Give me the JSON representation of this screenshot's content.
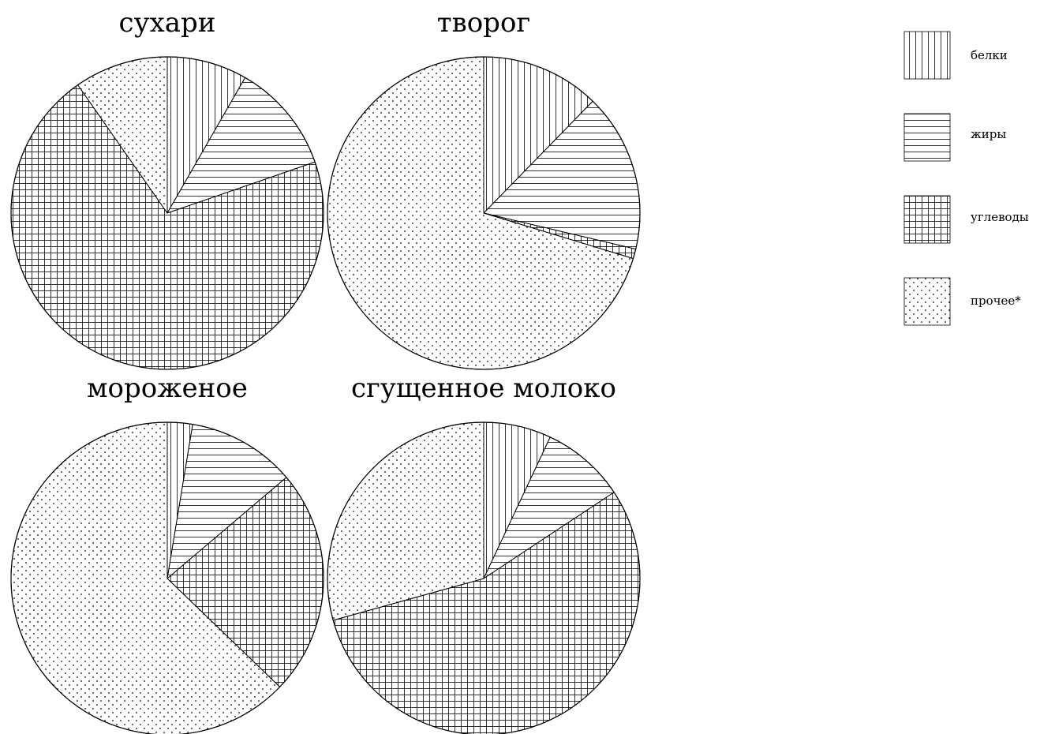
{
  "chart_data": [
    {
      "type": "pie",
      "title": "сухари",
      "slices": [
        {
          "label": "белки",
          "value": 8.3
        },
        {
          "label": "жиры",
          "value": 11.4
        },
        {
          "label": "углеводы",
          "value": 70.6
        },
        {
          "label": "прочее*",
          "value": 9.7
        }
      ]
    },
    {
      "type": "pie",
      "title": "творог",
      "slices": [
        {
          "label": "белки",
          "value": 12.3
        },
        {
          "label": "жиры",
          "value": 16.4
        },
        {
          "label": "углеводы",
          "value": 1.0
        },
        {
          "label": "прочее*",
          "value": 70.3
        }
      ]
    },
    {
      "type": "pie",
      "title": "мороженое",
      "slices": [
        {
          "label": "белки",
          "value": 2.6
        },
        {
          "label": "жиры",
          "value": 11.2
        },
        {
          "label": "углеводы",
          "value": 23.4
        },
        {
          "label": "прочее*",
          "value": 62.8
        }
      ]
    },
    {
      "type": "pie",
      "title": "сгущенное молоко",
      "slices": [
        {
          "label": "белки",
          "value": 7.0
        },
        {
          "label": "жиры",
          "value": 8.7
        },
        {
          "label": "углеводы",
          "value": 55.0
        },
        {
          "label": "прочее*",
          "value": 29.3
        }
      ]
    }
  ],
  "legend": {
    "placement": "top-right",
    "items": [
      {
        "label": "белки",
        "pattern": "vertical-lines"
      },
      {
        "label": "жиры",
        "pattern": "horizontal-lines"
      },
      {
        "label": "углеводы",
        "pattern": "grid"
      },
      {
        "label": "прочее*",
        "pattern": "dots"
      }
    ]
  },
  "colors": {
    "stroke": "#000000",
    "background": "#ffffff"
  }
}
